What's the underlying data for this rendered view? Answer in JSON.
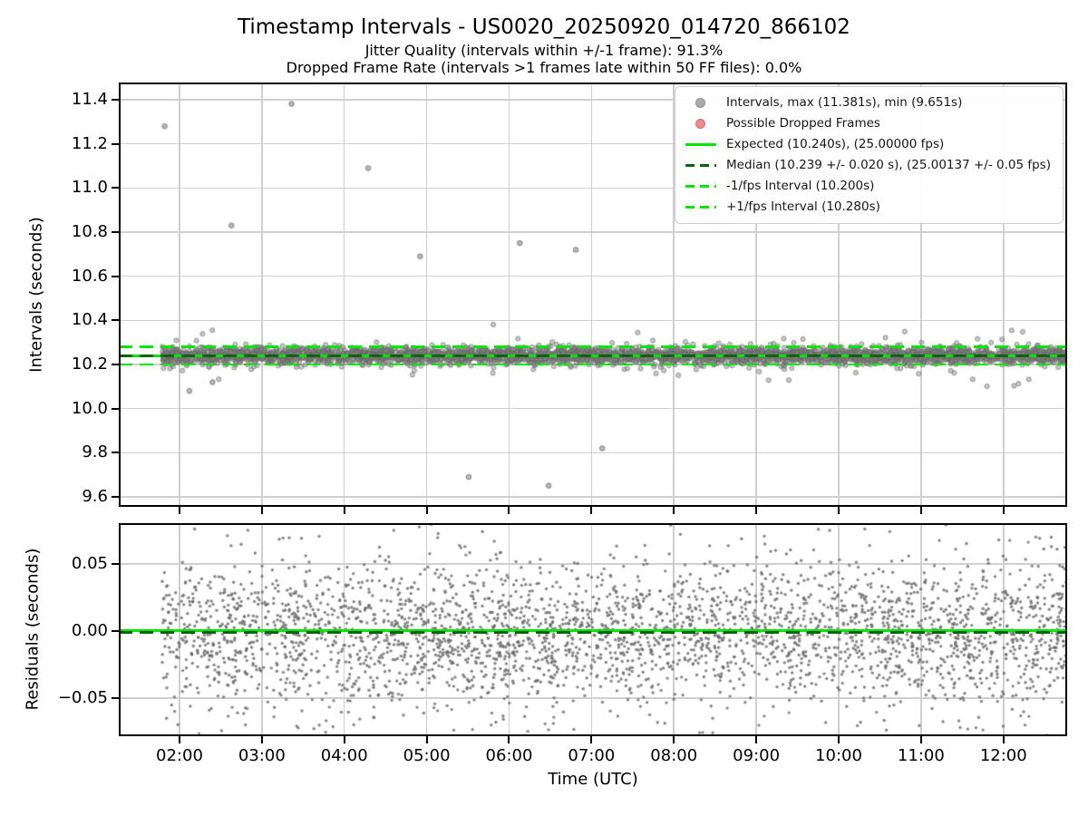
{
  "figure": {
    "title": "Timestamp Intervals - US0020_20250920_014720_866102",
    "subtitle_jitter": "Jitter Quality (intervals within +/-1 frame): 91.3%",
    "subtitle_dropped": "Dropped Frame Rate (intervals >1 frames late within 50 FF files): 0.0%"
  },
  "colors": {
    "marker_gray_fill": "rgba(130,130,130,0.45)",
    "marker_gray_edge": "rgba(97,97,97,0.55)",
    "residual_gray": "rgba(108,108,108,0.82)",
    "legend_gray_dot": "#ababab",
    "dropped_red": "#f28989",
    "expected_green": "#00e400",
    "median_dark_green": "#006400",
    "grid_gray": "#cfcfcf",
    "spine_black": "#000000"
  },
  "chart_data": [
    {
      "id": "intervals",
      "type": "scatter",
      "ylabel": "Intervals (seconds)",
      "ylim": [
        9.555,
        11.478
      ],
      "yticks": [
        {
          "v": 9.6,
          "label": "9.6"
        },
        {
          "v": 9.8,
          "label": "9.8"
        },
        {
          "v": 10.0,
          "label": "10.0"
        },
        {
          "v": 10.2,
          "label": "10.2"
        },
        {
          "v": 10.4,
          "label": "10.4"
        },
        {
          "v": 10.6,
          "label": "10.6"
        },
        {
          "v": 10.8,
          "label": "10.8"
        },
        {
          "v": 11.0,
          "label": "11.0"
        },
        {
          "v": 11.2,
          "label": "11.2"
        },
        {
          "v": 11.4,
          "label": "11.4"
        }
      ],
      "xlim_hours": [
        1.263,
        12.773
      ],
      "xticks": [
        {
          "h": 2,
          "label": "02:00"
        },
        {
          "h": 3,
          "label": "03:00"
        },
        {
          "h": 4,
          "label": "04:00"
        },
        {
          "h": 5,
          "label": "05:00"
        },
        {
          "h": 6,
          "label": "06:00"
        },
        {
          "h": 7,
          "label": "07:00"
        },
        {
          "h": 8,
          "label": "08:00"
        },
        {
          "h": 9,
          "label": "09:00"
        },
        {
          "h": 10,
          "label": "10:00"
        },
        {
          "h": 11,
          "label": "11:00"
        },
        {
          "h": 12,
          "label": "12:00"
        }
      ],
      "show_xtick_labels": false,
      "grid": true,
      "series_summary": {
        "time_start_utc": "01:47",
        "time_end_utc": "12:46",
        "max_s": 11.381,
        "min_s": 9.651,
        "expected_s": 10.24,
        "expected_fps": 25.0,
        "median_s": 10.239,
        "median_spread_s": 0.02,
        "median_fps": 25.00137,
        "median_fps_spread": 0.05,
        "jitter_quality_pct": 91.3,
        "dropped_frame_rate_pct": 0.0,
        "ff_files": 50
      },
      "band": {
        "center": 10.2395,
        "sigma": 0.0185,
        "n": 3600,
        "fringe_sigma": 0.05,
        "fringe_n": 150,
        "t_start": 1.789,
        "t_end": 12.773
      },
      "outliers": [
        [
          1.82,
          11.28
        ],
        [
          3.36,
          11.381
        ],
        [
          4.29,
          11.09
        ],
        [
          2.63,
          10.83
        ],
        [
          4.92,
          10.69
        ],
        [
          6.13,
          10.75
        ],
        [
          6.81,
          10.72
        ],
        [
          2.12,
          10.08
        ],
        [
          2.4,
          10.12
        ],
        [
          5.51,
          9.69
        ],
        [
          6.48,
          9.651
        ],
        [
          7.13,
          9.82
        ]
      ],
      "ref_lines": [
        {
          "name": "plus-1fps-line",
          "value": 10.28,
          "style": "dashed",
          "color_key": "expected_green",
          "thickness": 2.5
        },
        {
          "name": "minus-1fps-line",
          "value": 10.2,
          "style": "dashed",
          "color_key": "expected_green",
          "thickness": 2.5
        },
        {
          "name": "expected-line",
          "value": 10.24,
          "style": "solid",
          "color_key": "expected_green",
          "thickness": 3
        },
        {
          "name": "median-line",
          "value": 10.239,
          "style": "dashed",
          "color_key": "median_dark_green",
          "thickness": 3
        }
      ],
      "legend": {
        "position": "upper right",
        "entries": [
          {
            "swatch": "dot",
            "color_key": "legend_gray_dot",
            "label": "Intervals, max (11.381s), min (9.651s)"
          },
          {
            "swatch": "dot",
            "color_key": "dropped_red",
            "label": "Possible Dropped Frames"
          },
          {
            "swatch": "line-solid",
            "color_key": "expected_green",
            "label": "Expected (10.240s), (25.00000 fps)"
          },
          {
            "swatch": "line-dashed",
            "color_key": "median_dark_green",
            "label": "Median (10.239 +/- 0.020 s), (25.00137 +/- 0.05 fps)"
          },
          {
            "swatch": "line-dashed",
            "color_key": "expected_green",
            "label": "-1/fps Interval (10.200s)"
          },
          {
            "swatch": "line-dashed",
            "color_key": "expected_green",
            "label": "+1/fps Interval (10.280s)"
          }
        ]
      }
    },
    {
      "id": "residuals",
      "type": "scatter",
      "ylabel": "Residuals (seconds)",
      "xlabel": "Time (UTC)",
      "ylim": [
        -0.0784,
        0.0804
      ],
      "yticks": [
        {
          "v": -0.05,
          "label": "−0.05"
        },
        {
          "v": 0.0,
          "label": "0.00"
        },
        {
          "v": 0.05,
          "label": "0.05"
        }
      ],
      "xlim_hours": [
        1.263,
        12.773
      ],
      "xticks": [
        {
          "h": 2,
          "label": "02:00"
        },
        {
          "h": 3,
          "label": "03:00"
        },
        {
          "h": 4,
          "label": "04:00"
        },
        {
          "h": 5,
          "label": "05:00"
        },
        {
          "h": 6,
          "label": "06:00"
        },
        {
          "h": 7,
          "label": "07:00"
        },
        {
          "h": 8,
          "label": "08:00"
        },
        {
          "h": 9,
          "label": "09:00"
        },
        {
          "h": 10,
          "label": "10:00"
        },
        {
          "h": 11,
          "label": "11:00"
        },
        {
          "h": 12,
          "label": "12:00"
        }
      ],
      "show_xtick_labels": true,
      "grid": true,
      "noise": {
        "center": -0.002,
        "sigma": 0.026,
        "n": 3400,
        "tail_sigma": 0.05,
        "tail_frac": 0.18,
        "t_start": 1.789,
        "t_end": 12.773
      },
      "ref_lines": [
        {
          "name": "zero-line",
          "value": 0.0,
          "style": "solid",
          "color_key": "expected_green",
          "thickness": 3
        },
        {
          "name": "median-residual-line",
          "value": -0.001,
          "style": "dashed",
          "color_key": "median_dark_green",
          "thickness": 3
        }
      ]
    }
  ]
}
